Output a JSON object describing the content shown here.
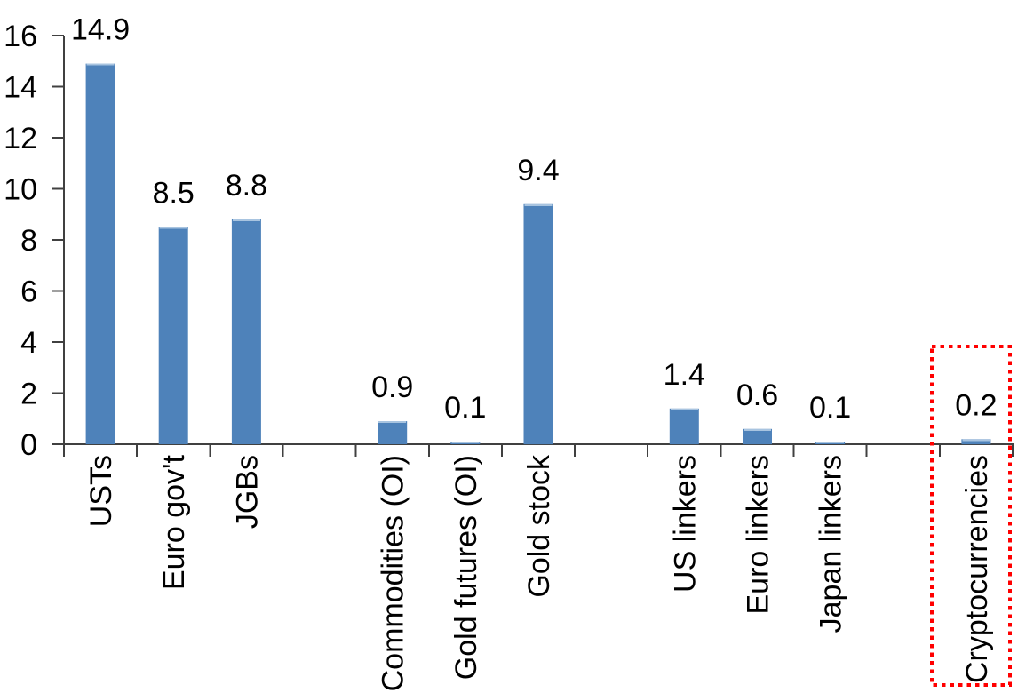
{
  "chart_data": {
    "type": "bar",
    "title": "",
    "xlabel": "",
    "ylabel": "",
    "categories": [
      "USTs",
      "Euro gov't",
      "JGBs",
      "",
      "Commodities (OI)",
      "Gold futures (OI)",
      "Gold stock",
      "",
      "US linkers",
      "Euro linkers",
      "Japan linkers",
      "",
      "Cryptocurrencies"
    ],
    "values": [
      14.9,
      8.5,
      8.8,
      null,
      0.9,
      0.1,
      9.4,
      null,
      1.4,
      0.6,
      0.1,
      null,
      0.2
    ],
    "data_labels": [
      "14.9",
      "8.5",
      "8.8",
      "",
      "0.9",
      "0.1",
      "9.4",
      "",
      "1.4",
      "0.6",
      "0.1",
      "",
      "0.2"
    ],
    "ylim": [
      0,
      16
    ],
    "ytick_step": 2,
    "ytick_labels": [
      "0",
      "2",
      "4",
      "6",
      "8",
      "10",
      "12",
      "14",
      "16"
    ],
    "grid": false,
    "legend": null,
    "colors": {
      "bar": "#4E82BA",
      "bar_top_edge": "#A8C4E0",
      "axis": "#404040",
      "text": "#000000",
      "highlight": "#FF0000"
    },
    "highlight_box": {
      "target_category": "Cryptocurrencies",
      "target_index": 12,
      "border_style": "dotted",
      "color": "#FF0000"
    }
  }
}
